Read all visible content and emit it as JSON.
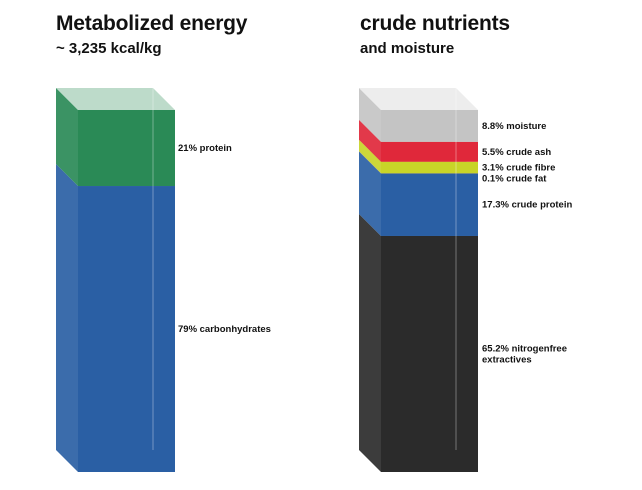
{
  "chart_data": [
    {
      "type": "stacked-bar",
      "title": "Metabolized energy",
      "subtitle": "~ 3,235 kcal/kg",
      "unit": "%",
      "segments": [
        {
          "value": 79,
          "label": "79% carbonhydrates",
          "color": "#2a5fa4"
        },
        {
          "value": 21,
          "label": "21% protein",
          "color": "#2a8a56"
        }
      ]
    },
    {
      "type": "stacked-bar",
      "title": "crude nutrients",
      "subtitle": "and moisture",
      "unit": "%",
      "segments": [
        {
          "value": 65.2,
          "label": "65.2% nitrogenfree extractives",
          "color": "#2b2b2b"
        },
        {
          "value": 17.3,
          "label": "17.3% crude protein",
          "color": "#2a5fa4"
        },
        {
          "value": 0.1,
          "label": "0.1% crude fat",
          "color": "#e8c81a"
        },
        {
          "value": 3.1,
          "label": "3.1% crude fibre",
          "color": "#c8d428"
        },
        {
          "value": 5.5,
          "label": "5.5% crude ash",
          "color": "#e0283a"
        },
        {
          "value": 8.8,
          "label": "8.8% moisture",
          "color": "#c4c4c4"
        }
      ]
    }
  ]
}
